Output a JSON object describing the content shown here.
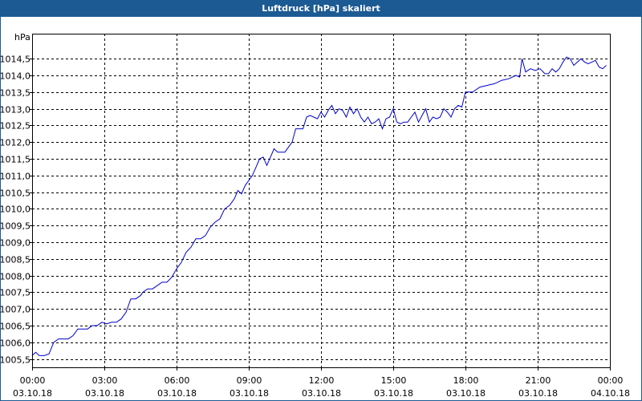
{
  "window": {
    "title": "Luftdruck [hPa] skaliert"
  },
  "colors": {
    "title_bar": "#1c5a93",
    "line": "#0000cc",
    "grid": "#000000"
  },
  "chart_data": {
    "type": "line",
    "title": "Luftdruck [hPa] skaliert",
    "ylabel": "hPa",
    "ylim": [
      1005.25,
      1015.25
    ],
    "xlim_hours": [
      0,
      24
    ],
    "grid": true,
    "yticks": [
      {
        "v": 1005.5,
        "label": "1005,5"
      },
      {
        "v": 1006.0,
        "label": "1006,0"
      },
      {
        "v": 1006.5,
        "label": "1006,5"
      },
      {
        "v": 1007.0,
        "label": "1007,0"
      },
      {
        "v": 1007.5,
        "label": "1007,5"
      },
      {
        "v": 1008.0,
        "label": "1008,0"
      },
      {
        "v": 1008.5,
        "label": "1008,5"
      },
      {
        "v": 1009.0,
        "label": "1009,0"
      },
      {
        "v": 1009.5,
        "label": "1009,5"
      },
      {
        "v": 1010.0,
        "label": "1010,0"
      },
      {
        "v": 1010.5,
        "label": "1010,5"
      },
      {
        "v": 1011.0,
        "label": "1011,0"
      },
      {
        "v": 1011.5,
        "label": "1011,5"
      },
      {
        "v": 1012.0,
        "label": "1012,0"
      },
      {
        "v": 1012.5,
        "label": "1012,5"
      },
      {
        "v": 1013.0,
        "label": "1013,0"
      },
      {
        "v": 1013.5,
        "label": "1013,5"
      },
      {
        "v": 1014.0,
        "label": "1014,0"
      },
      {
        "v": 1014.5,
        "label": "1014,5"
      }
    ],
    "xticks": [
      {
        "h": 0,
        "time": "00:00",
        "date": "03.10.18"
      },
      {
        "h": 3,
        "time": "03:00",
        "date": "03.10.18"
      },
      {
        "h": 6,
        "time": "06:00",
        "date": "03.10.18"
      },
      {
        "h": 9,
        "time": "09:00",
        "date": "03.10.18"
      },
      {
        "h": 12,
        "time": "12:00",
        "date": "03.10.18"
      },
      {
        "h": 15,
        "time": "15:00",
        "date": "03.10.18"
      },
      {
        "h": 18,
        "time": "18:00",
        "date": "03.10.18"
      },
      {
        "h": 21,
        "time": "21:00",
        "date": "03.10.18"
      },
      {
        "h": 24,
        "time": "00:00",
        "date": "04.10.18"
      }
    ],
    "series": [
      {
        "points": [
          [
            0.0,
            1005.6
          ],
          [
            0.15,
            1005.7
          ],
          [
            0.3,
            1005.6
          ],
          [
            0.5,
            1005.6
          ],
          [
            0.7,
            1005.65
          ],
          [
            0.9,
            1006.0
          ],
          [
            1.1,
            1006.1
          ],
          [
            1.3,
            1006.1
          ],
          [
            1.5,
            1006.1
          ],
          [
            1.7,
            1006.2
          ],
          [
            1.9,
            1006.4
          ],
          [
            2.1,
            1006.4
          ],
          [
            2.3,
            1006.4
          ],
          [
            2.5,
            1006.5
          ],
          [
            2.7,
            1006.5
          ],
          [
            2.9,
            1006.6
          ],
          [
            3.1,
            1006.55
          ],
          [
            3.3,
            1006.6
          ],
          [
            3.5,
            1006.6
          ],
          [
            3.7,
            1006.7
          ],
          [
            3.9,
            1006.9
          ],
          [
            4.1,
            1007.3
          ],
          [
            4.3,
            1007.3
          ],
          [
            4.5,
            1007.4
          ],
          [
            4.6,
            1007.5
          ],
          [
            4.8,
            1007.6
          ],
          [
            5.0,
            1007.6
          ],
          [
            5.2,
            1007.7
          ],
          [
            5.4,
            1007.8
          ],
          [
            5.6,
            1007.8
          ],
          [
            5.8,
            1007.95
          ],
          [
            6.0,
            1008.2
          ],
          [
            6.2,
            1008.4
          ],
          [
            6.4,
            1008.7
          ],
          [
            6.6,
            1008.85
          ],
          [
            6.8,
            1009.1
          ],
          [
            7.0,
            1009.1
          ],
          [
            7.2,
            1009.2
          ],
          [
            7.4,
            1009.45
          ],
          [
            7.6,
            1009.6
          ],
          [
            7.8,
            1009.7
          ],
          [
            8.0,
            1010.0
          ],
          [
            8.2,
            1010.1
          ],
          [
            8.4,
            1010.3
          ],
          [
            8.55,
            1010.55
          ],
          [
            8.7,
            1010.45
          ],
          [
            8.85,
            1010.7
          ],
          [
            9.0,
            1010.85
          ],
          [
            9.15,
            1011.0
          ],
          [
            9.3,
            1011.25
          ],
          [
            9.45,
            1011.5
          ],
          [
            9.6,
            1011.55
          ],
          [
            9.75,
            1011.3
          ],
          [
            9.9,
            1011.55
          ],
          [
            10.05,
            1011.8
          ],
          [
            10.2,
            1011.7
          ],
          [
            10.35,
            1011.7
          ],
          [
            10.5,
            1011.7
          ],
          [
            10.65,
            1011.85
          ],
          [
            10.8,
            1012.0
          ],
          [
            10.95,
            1012.4
          ],
          [
            11.1,
            1012.4
          ],
          [
            11.25,
            1012.4
          ],
          [
            11.4,
            1012.75
          ],
          [
            11.55,
            1012.8
          ],
          [
            11.7,
            1012.75
          ],
          [
            11.85,
            1012.7
          ],
          [
            12.0,
            1012.9
          ],
          [
            12.15,
            1012.75
          ],
          [
            12.3,
            1012.95
          ],
          [
            12.45,
            1013.1
          ],
          [
            12.6,
            1012.85
          ],
          [
            12.75,
            1013.0
          ],
          [
            12.9,
            1012.95
          ],
          [
            13.05,
            1012.75
          ],
          [
            13.2,
            1013.05
          ],
          [
            13.35,
            1012.85
          ],
          [
            13.5,
            1013.0
          ],
          [
            13.65,
            1012.75
          ],
          [
            13.8,
            1012.6
          ],
          [
            13.95,
            1012.75
          ],
          [
            14.1,
            1012.55
          ],
          [
            14.25,
            1012.6
          ],
          [
            14.4,
            1012.7
          ],
          [
            14.55,
            1012.4
          ],
          [
            14.7,
            1012.7
          ],
          [
            14.85,
            1012.75
          ],
          [
            15.0,
            1013.0
          ],
          [
            15.15,
            1012.6
          ],
          [
            15.3,
            1012.55
          ],
          [
            15.45,
            1012.6
          ],
          [
            15.6,
            1012.6
          ],
          [
            15.75,
            1012.75
          ],
          [
            15.9,
            1012.9
          ],
          [
            16.05,
            1012.6
          ],
          [
            16.2,
            1012.8
          ],
          [
            16.35,
            1013.0
          ],
          [
            16.5,
            1012.6
          ],
          [
            16.65,
            1012.75
          ],
          [
            16.8,
            1012.7
          ],
          [
            16.95,
            1012.75
          ],
          [
            17.1,
            1013.0
          ],
          [
            17.25,
            1012.9
          ],
          [
            17.4,
            1012.75
          ],
          [
            17.55,
            1013.0
          ],
          [
            17.7,
            1013.1
          ],
          [
            17.85,
            1013.05
          ],
          [
            18.0,
            1013.5
          ],
          [
            18.3,
            1013.5
          ],
          [
            18.6,
            1013.65
          ],
          [
            18.9,
            1013.7
          ],
          [
            19.2,
            1013.75
          ],
          [
            19.5,
            1013.85
          ],
          [
            19.8,
            1013.9
          ],
          [
            20.1,
            1014.0
          ],
          [
            20.25,
            1013.95
          ],
          [
            20.35,
            1014.5
          ],
          [
            20.5,
            1014.1
          ],
          [
            20.7,
            1014.2
          ],
          [
            20.9,
            1014.15
          ],
          [
            21.1,
            1014.2
          ],
          [
            21.3,
            1014.05
          ],
          [
            21.45,
            1014.05
          ],
          [
            21.6,
            1014.2
          ],
          [
            21.75,
            1014.1
          ],
          [
            21.9,
            1014.2
          ],
          [
            22.05,
            1014.4
          ],
          [
            22.2,
            1014.55
          ],
          [
            22.35,
            1014.5
          ],
          [
            22.5,
            1014.3
          ],
          [
            22.65,
            1014.4
          ],
          [
            22.8,
            1014.5
          ],
          [
            22.95,
            1014.4
          ],
          [
            23.1,
            1014.35
          ],
          [
            23.25,
            1014.4
          ],
          [
            23.4,
            1014.45
          ],
          [
            23.55,
            1014.25
          ],
          [
            23.7,
            1014.2
          ],
          [
            23.85,
            1014.3
          ]
        ]
      }
    ]
  }
}
